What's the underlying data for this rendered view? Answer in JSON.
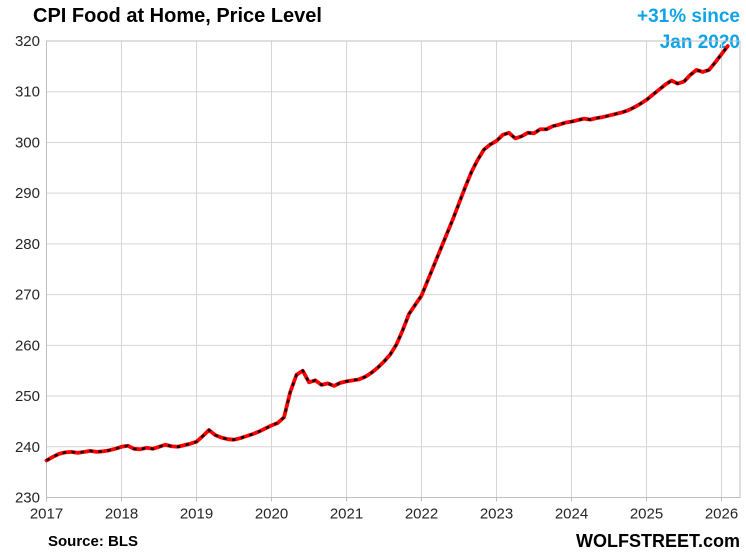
{
  "page": {
    "title": "CPI Food at Home, Price Level"
  },
  "annotation": {
    "line1": "+31% since",
    "line2": "Jan 2020"
  },
  "footer": {
    "source": "Source: BLS",
    "brand": "WOLFSTREET.com"
  },
  "colors": {
    "line": "#fe0000",
    "marker_dashes": "#000000",
    "annotation": "#0fa3e8",
    "grid": "#d6d6d6",
    "plot_border": "#bfbfbf",
    "axis_text": "#262626"
  },
  "chart_data": {
    "type": "line",
    "title": "CPI Food at Home, Price Level",
    "xlabel": "",
    "ylabel": "",
    "x_unit": "month",
    "x_start": "2017-01",
    "x_tick_labels": [
      "2017",
      "2018",
      "2019",
      "2020",
      "2021",
      "2022",
      "2023",
      "2024",
      "2025",
      "2026"
    ],
    "y_ticks": [
      230,
      240,
      250,
      260,
      270,
      280,
      290,
      300,
      310,
      320
    ],
    "ylim": [
      230,
      320
    ],
    "grid": true,
    "legend": "none",
    "series": [
      {
        "name": "CPI Food at Home, price level (index)",
        "style": "red solid line with black dash overlay",
        "values": [
          237.3,
          238.0,
          238.6,
          238.9,
          239.0,
          238.8,
          239.0,
          239.2,
          239.0,
          239.1,
          239.3,
          239.6,
          240.0,
          240.2,
          239.6,
          239.5,
          239.8,
          239.6,
          240.0,
          240.4,
          240.1,
          240.0,
          240.3,
          240.6,
          241.0,
          242.1,
          243.3,
          242.3,
          241.8,
          241.5,
          241.4,
          241.7,
          242.1,
          242.5,
          243.0,
          243.6,
          244.2,
          244.7,
          245.8,
          250.8,
          254.2,
          255.0,
          252.7,
          253.1,
          252.2,
          252.5,
          252.0,
          252.6,
          252.9,
          253.1,
          253.3,
          253.8,
          254.6,
          255.6,
          256.8,
          258.2,
          260.2,
          263.0,
          266.2,
          268.0,
          269.8,
          272.8,
          275.8,
          278.8,
          281.8,
          284.8,
          288.0,
          291.2,
          294.2,
          296.6,
          298.6,
          299.6,
          300.3,
          301.5,
          301.9,
          300.8,
          301.2,
          301.9,
          301.8,
          302.6,
          302.6,
          303.2,
          303.5,
          303.9,
          304.1,
          304.4,
          304.7,
          304.5,
          304.8,
          305.0,
          305.3,
          305.6,
          305.9,
          306.3,
          306.9,
          307.6,
          308.4,
          309.4,
          310.4,
          311.4,
          312.2,
          311.6,
          312.0,
          313.3,
          314.3,
          313.9,
          314.3,
          315.8,
          317.4,
          319.0
        ]
      }
    ]
  }
}
